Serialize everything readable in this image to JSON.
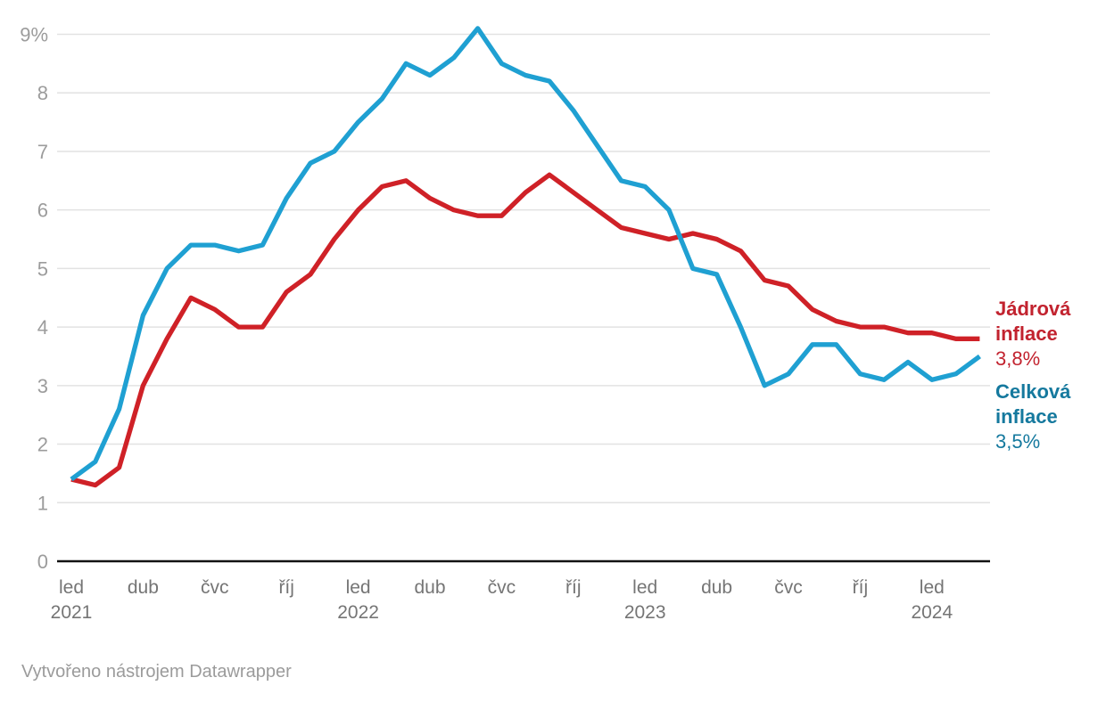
{
  "chart_data": {
    "type": "line",
    "title": "",
    "xlabel": "",
    "ylabel": "",
    "y_unit": "%",
    "ylim": [
      0,
      9
    ],
    "grid": true,
    "legend_position": "right",
    "x_start": "led 2021",
    "x_end": "bře 2024",
    "months_per_point": 1,
    "y_ticks": [
      {
        "v": 9,
        "label": "9%"
      },
      {
        "v": 8,
        "label": "8"
      },
      {
        "v": 7,
        "label": "7"
      },
      {
        "v": 6,
        "label": "6"
      },
      {
        "v": 5,
        "label": "5"
      },
      {
        "v": 4,
        "label": "4"
      },
      {
        "v": 3,
        "label": "3"
      },
      {
        "v": 2,
        "label": "2"
      },
      {
        "v": 1,
        "label": "1"
      },
      {
        "v": 0,
        "label": "0"
      }
    ],
    "x_ticks": [
      {
        "m": 0,
        "label": "led",
        "year": "2021"
      },
      {
        "m": 3,
        "label": "dub"
      },
      {
        "m": 6,
        "label": "čvc"
      },
      {
        "m": 9,
        "label": "říj"
      },
      {
        "m": 12,
        "label": "led",
        "year": "2022"
      },
      {
        "m": 15,
        "label": "dub"
      },
      {
        "m": 18,
        "label": "čvc"
      },
      {
        "m": 21,
        "label": "říj"
      },
      {
        "m": 24,
        "label": "led",
        "year": "2023"
      },
      {
        "m": 27,
        "label": "dub"
      },
      {
        "m": 30,
        "label": "čvc"
      },
      {
        "m": 33,
        "label": "říj"
      },
      {
        "m": 36,
        "label": "led",
        "year": "2024"
      }
    ],
    "series": [
      {
        "id": "jadrova-inflace",
        "name": "Jádrová inflace",
        "color": "#cf2127",
        "end_value_label": "3,8%",
        "values": [
          1.4,
          1.3,
          1.6,
          3.0,
          3.8,
          4.5,
          4.3,
          4.0,
          4.0,
          4.6,
          4.9,
          5.5,
          6.0,
          6.4,
          6.5,
          6.2,
          6.0,
          5.9,
          5.9,
          6.3,
          6.6,
          6.3,
          6.0,
          5.7,
          5.6,
          5.5,
          5.6,
          5.5,
          5.3,
          4.8,
          4.7,
          4.3,
          4.1,
          4.0,
          4.0,
          3.9,
          3.9,
          3.8,
          3.8
        ]
      },
      {
        "id": "celkova-inflace",
        "name": "Celková inflace",
        "color": "#1fa0d2",
        "end_value_label": "3,5%",
        "values": [
          1.4,
          1.7,
          2.6,
          4.2,
          5.0,
          5.4,
          5.4,
          5.3,
          5.4,
          6.2,
          6.8,
          7.0,
          7.5,
          7.9,
          8.5,
          8.3,
          8.6,
          9.1,
          8.5,
          8.3,
          8.2,
          7.7,
          7.1,
          6.5,
          6.4,
          6.0,
          5.0,
          4.9,
          4.0,
          3.0,
          3.2,
          3.7,
          3.7,
          3.2,
          3.1,
          3.4,
          3.1,
          3.2,
          3.5
        ]
      }
    ]
  },
  "legend": {
    "items": [
      {
        "label": "Jádrová inflace",
        "value": "3,8%",
        "label_color": "#c2232f"
      },
      {
        "label": "Celková inflace",
        "value": "3,5%",
        "label_color": "#15799e"
      }
    ]
  },
  "footer": {
    "text": "Vytvořeno nástrojem Datawrapper"
  },
  "colors": {
    "background": "#ffffff",
    "grid": "#e2e2e2",
    "axis": "#121212",
    "y_tick_text": "#9c9c9c",
    "x_tick_text": "#757575",
    "footer_text": "#9b9b9b"
  }
}
